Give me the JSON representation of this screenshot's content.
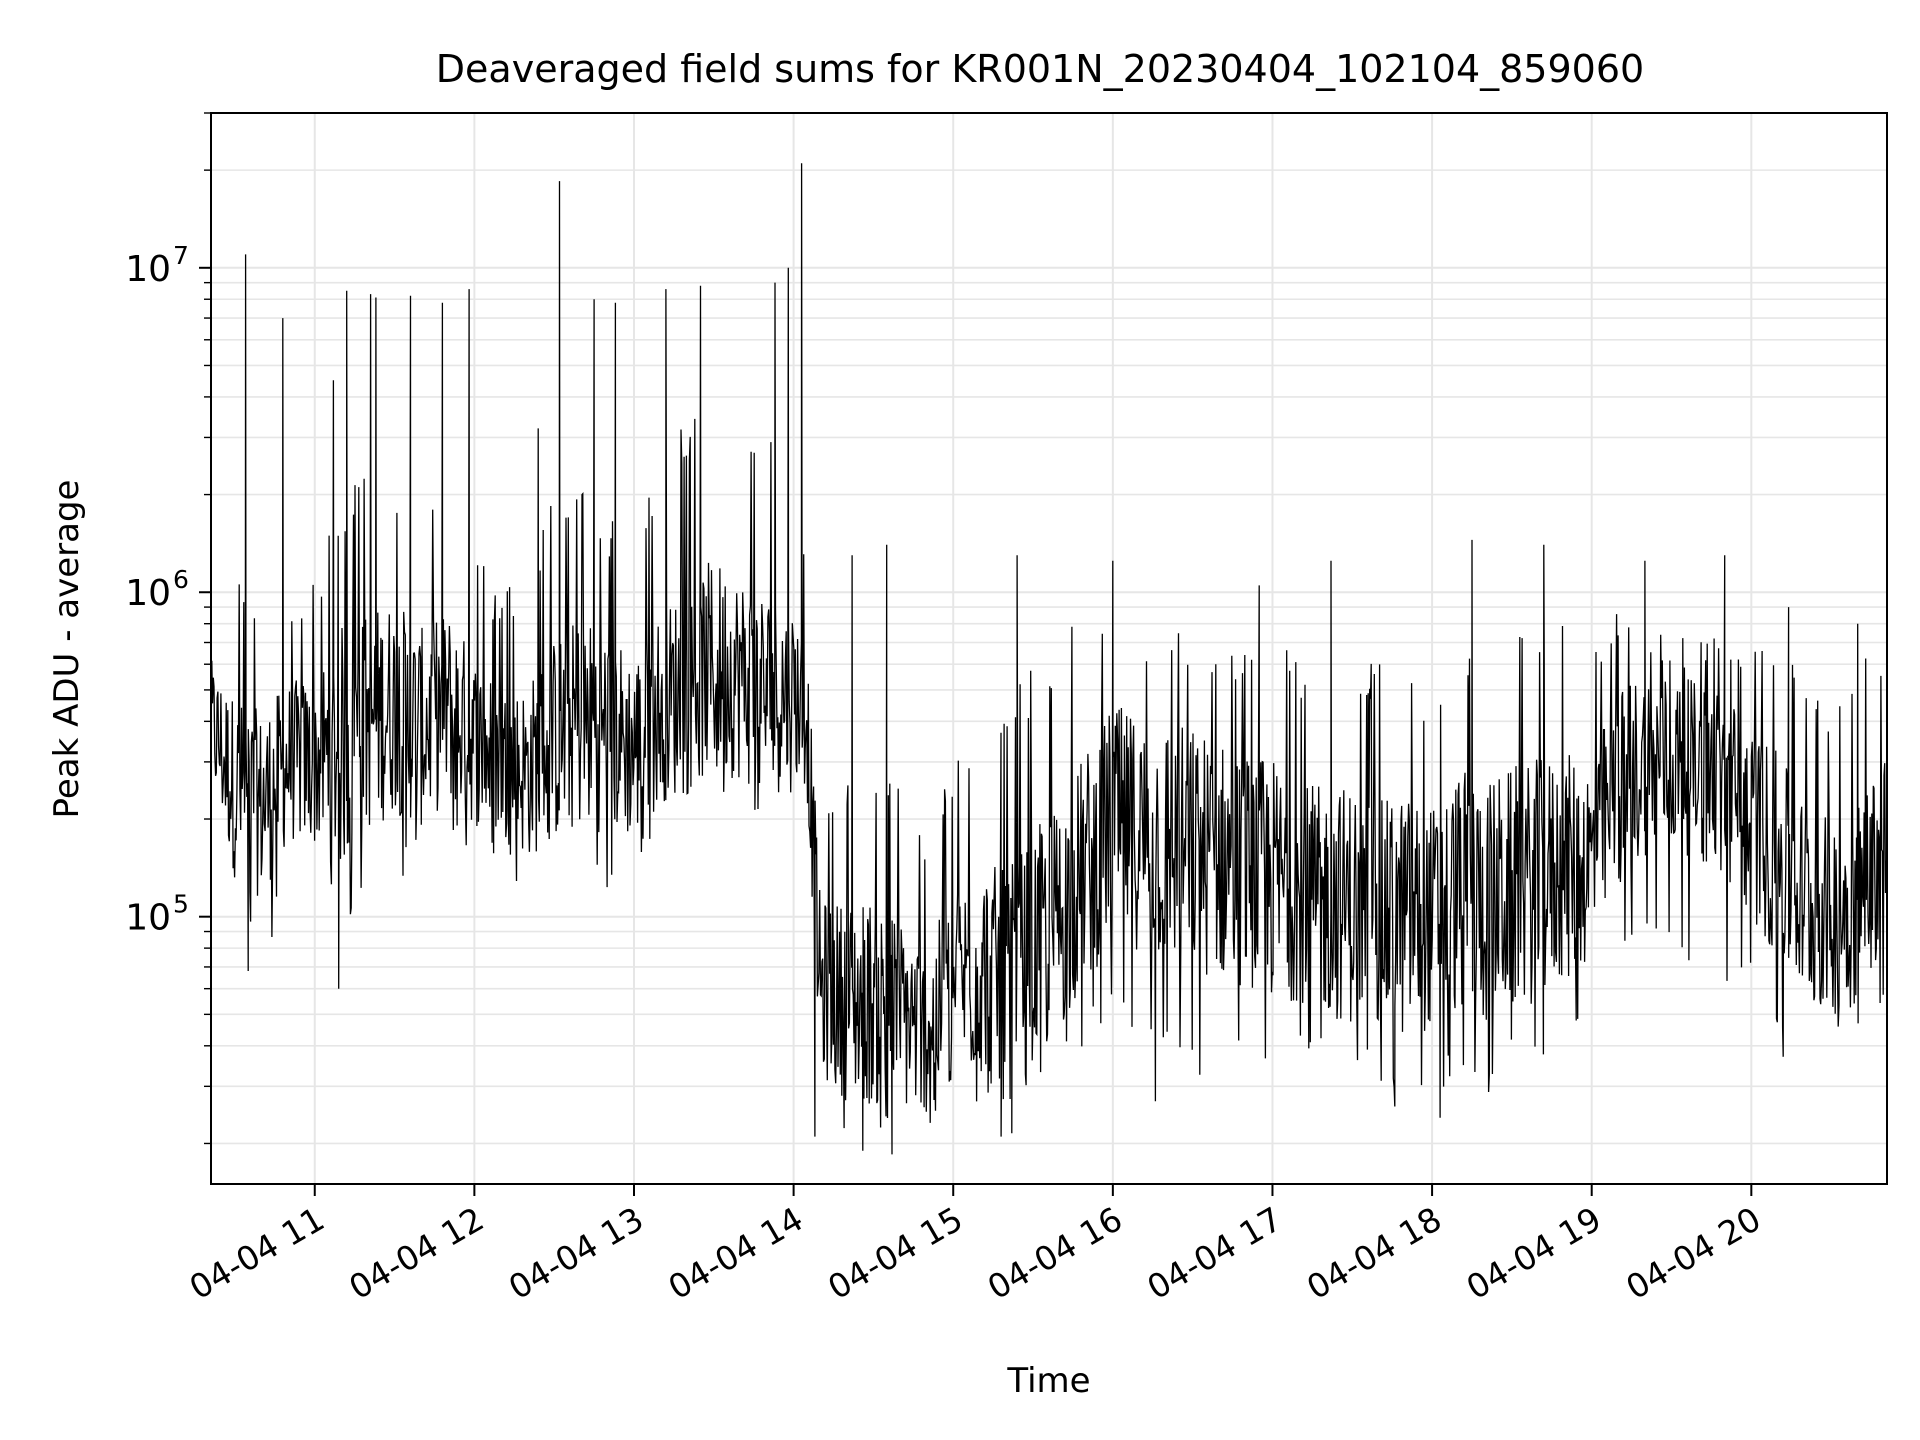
{
  "chart_data": {
    "type": "line",
    "title": "Deaveraged field sums for KR001N_20230404_102104_859060",
    "xlabel": "Time",
    "ylabel": "Peak ADU - average",
    "yscale": "log",
    "xlim": [
      "2023-04-04 10:21",
      "2023-04-04 20:51"
    ],
    "ylim": [
      15000,
      30000000
    ],
    "grid": true,
    "legend": "none",
    "line_color": "#000000",
    "grid_color": "#e6e6e6",
    "x_ticks": [
      {
        "x": "2023-04-04 11:00",
        "label": "04-04 11"
      },
      {
        "x": "2023-04-04 12:00",
        "label": "04-04 12"
      },
      {
        "x": "2023-04-04 13:00",
        "label": "04-04 13"
      },
      {
        "x": "2023-04-04 14:00",
        "label": "04-04 14"
      },
      {
        "x": "2023-04-04 15:00",
        "label": "04-04 15"
      },
      {
        "x": "2023-04-04 16:00",
        "label": "04-04 16"
      },
      {
        "x": "2023-04-04 17:00",
        "label": "04-04 17"
      },
      {
        "x": "2023-04-04 18:00",
        "label": "04-04 18"
      },
      {
        "x": "2023-04-04 19:00",
        "label": "04-04 19"
      },
      {
        "x": "2023-04-04 20:00",
        "label": "04-04 20"
      }
    ],
    "y_ticks": [
      {
        "y": 100000,
        "base": "10",
        "exp": "5"
      },
      {
        "y": 1000000,
        "base": "10",
        "exp": "6"
      },
      {
        "y": 10000000,
        "base": "10",
        "exp": "7"
      }
    ],
    "series": [
      {
        "x": [
          "2023-04-04 10:21",
          "2023-04-04 10:30",
          "2023-04-04 10:40",
          "2023-04-04 10:50",
          "2023-04-04 11:00",
          "2023-04-04 11:10",
          "2023-04-04 11:20",
          "2023-04-04 11:30",
          "2023-04-04 11:40",
          "2023-04-04 11:50",
          "2023-04-04 12:00",
          "2023-04-04 12:10",
          "2023-04-04 12:20",
          "2023-04-04 12:30",
          "2023-04-04 12:40",
          "2023-04-04 12:50",
          "2023-04-04 13:00",
          "2023-04-04 13:10",
          "2023-04-04 13:20",
          "2023-04-04 13:30",
          "2023-04-04 13:40",
          "2023-04-04 13:50",
          "2023-04-04 14:00",
          "2023-04-04 14:05",
          "2023-04-04 14:10",
          "2023-04-04 14:20",
          "2023-04-04 14:30",
          "2023-04-04 14:40",
          "2023-04-04 14:50",
          "2023-04-04 15:00",
          "2023-04-04 15:10",
          "2023-04-04 15:20",
          "2023-04-04 15:30",
          "2023-04-04 15:40",
          "2023-04-04 15:50",
          "2023-04-04 16:00",
          "2023-04-04 16:10",
          "2023-04-04 16:20",
          "2023-04-04 16:30",
          "2023-04-04 16:40",
          "2023-04-04 16:50",
          "2023-04-04 17:00",
          "2023-04-04 17:10",
          "2023-04-04 17:20",
          "2023-04-04 17:30",
          "2023-04-04 17:40",
          "2023-04-04 17:50",
          "2023-04-04 18:00",
          "2023-04-04 18:10",
          "2023-04-04 18:20",
          "2023-04-04 18:30",
          "2023-04-04 18:40",
          "2023-04-04 18:50",
          "2023-04-04 19:00",
          "2023-04-04 19:10",
          "2023-04-04 19:20",
          "2023-04-04 19:30",
          "2023-04-04 19:40",
          "2023-04-04 19:50",
          "2023-04-04 20:00",
          "2023-04-04 20:10",
          "2023-04-04 20:20",
          "2023-04-04 20:30",
          "2023-04-04 20:40",
          "2023-04-04 20:51"
        ],
        "y": [
          400000,
          250000,
          220000,
          300000,
          300000,
          330000,
          400000,
          450000,
          380000,
          450000,
          350000,
          300000,
          280000,
          350000,
          400000,
          380000,
          330000,
          450000,
          500000,
          600000,
          550000,
          480000,
          500000,
          420000,
          60000,
          55000,
          55000,
          50000,
          45000,
          60000,
          70000,
          60000,
          80000,
          100000,
          140000,
          200000,
          180000,
          170000,
          160000,
          150000,
          140000,
          130000,
          120000,
          110000,
          110000,
          100000,
          100000,
          100000,
          120000,
          110000,
          120000,
          130000,
          140000,
          150000,
          250000,
          300000,
          300000,
          280000,
          250000,
          200000,
          150000,
          110000,
          100000,
          110000,
          180000
        ],
        "upper": [
          1000000,
          1400000,
          800000,
          900000,
          1200000,
          2000000,
          2500000,
          2000000,
          2000000,
          2000000,
          1500000,
          1000000,
          1200000,
          2000000,
          2500000,
          1800000,
          1500000,
          2500000,
          3500000,
          4000000,
          3000000,
          3000000,
          2500000,
          1500000,
          250000,
          300000,
          350000,
          250000,
          200000,
          300000,
          400000,
          450000,
          600000,
          700000,
          900000,
          1000000,
          800000,
          900000,
          800000,
          700000,
          700000,
          800000,
          600000,
          700000,
          700000,
          600000,
          700000,
          500000,
          700000,
          700000,
          800000,
          800000,
          800000,
          700000,
          900000,
          900000,
          800000,
          700000,
          800000,
          700000,
          700000,
          600000,
          500000,
          600000,
          700000
        ],
        "lower": [
          200000,
          130000,
          70000,
          110000,
          130000,
          80000,
          140000,
          120000,
          150000,
          160000,
          160000,
          140000,
          120000,
          140000,
          150000,
          120000,
          130000,
          200000,
          220000,
          250000,
          200000,
          180000,
          250000,
          200000,
          25000,
          22000,
          22000,
          20000,
          22000,
          25000,
          23000,
          22000,
          30000,
          35000,
          40000,
          50000,
          38000,
          35000,
          32000,
          30000,
          33000,
          32000,
          35000,
          35000,
          30000,
          30000,
          28000,
          28000,
          30000,
          28000,
          32000,
          35000,
          40000,
          50000,
          60000,
          80000,
          80000,
          70000,
          60000,
          55000,
          45000,
          40000,
          38000,
          40000,
          50000
        ]
      }
    ],
    "spikes": [
      {
        "x": "2023-04-04 10:34",
        "y": 11000000
      },
      {
        "x": "2023-04-04 10:48",
        "y": 7000000
      },
      {
        "x": "2023-04-04 11:07",
        "y": 4500000
      },
      {
        "x": "2023-04-04 11:12",
        "y": 8500000
      },
      {
        "x": "2023-04-04 11:21",
        "y": 8300000
      },
      {
        "x": "2023-04-04 11:23",
        "y": 8100000
      },
      {
        "x": "2023-04-04 11:36",
        "y": 8200000
      },
      {
        "x": "2023-04-04 11:48",
        "y": 7800000
      },
      {
        "x": "2023-04-04 11:58",
        "y": 8600000
      },
      {
        "x": "2023-04-04 12:24",
        "y": 3200000
      },
      {
        "x": "2023-04-04 12:32",
        "y": 18500000
      },
      {
        "x": "2023-04-04 12:45",
        "y": 8000000
      },
      {
        "x": "2023-04-04 12:53",
        "y": 7800000
      },
      {
        "x": "2023-04-04 13:12",
        "y": 8600000
      },
      {
        "x": "2023-04-04 13:25",
        "y": 8800000
      },
      {
        "x": "2023-04-04 13:53",
        "y": 9000000
      },
      {
        "x": "2023-04-04 13:58",
        "y": 10000000
      },
      {
        "x": "2023-04-04 14:03",
        "y": 21000000
      },
      {
        "x": "2023-04-04 14:22",
        "y": 1300000
      },
      {
        "x": "2023-04-04 14:35",
        "y": 1400000
      },
      {
        "x": "2023-04-04 15:24",
        "y": 1300000
      },
      {
        "x": "2023-04-04 16:00",
        "y": 1250000
      },
      {
        "x": "2023-04-04 16:55",
        "y": 1050000
      },
      {
        "x": "2023-04-04 17:22",
        "y": 1250000
      },
      {
        "x": "2023-04-04 18:15",
        "y": 1450000
      },
      {
        "x": "2023-04-04 18:42",
        "y": 1400000
      },
      {
        "x": "2023-04-04 19:20",
        "y": 1250000
      },
      {
        "x": "2023-04-04 19:50",
        "y": 1300000
      },
      {
        "x": "2023-04-04 20:14",
        "y": 900000
      },
      {
        "x": "2023-04-04 20:40",
        "y": 800000
      }
    ],
    "dips": [
      {
        "x": "2023-04-04 10:35",
        "y": 68000
      },
      {
        "x": "2023-04-04 11:09",
        "y": 60000
      },
      {
        "x": "2023-04-04 14:08",
        "y": 21000
      },
      {
        "x": "2023-04-04 14:26",
        "y": 19000
      },
      {
        "x": "2023-04-04 14:37",
        "y": 18500
      },
      {
        "x": "2023-04-04 15:18",
        "y": 21000
      },
      {
        "x": "2023-04-04 15:22",
        "y": 21500
      },
      {
        "x": "2023-04-04 16:16",
        "y": 27000
      },
      {
        "x": "2023-04-04 17:46",
        "y": 26000
      },
      {
        "x": "2023-04-04 18:03",
        "y": 24000
      },
      {
        "x": "2023-04-04 20:12",
        "y": 37000
      }
    ]
  }
}
